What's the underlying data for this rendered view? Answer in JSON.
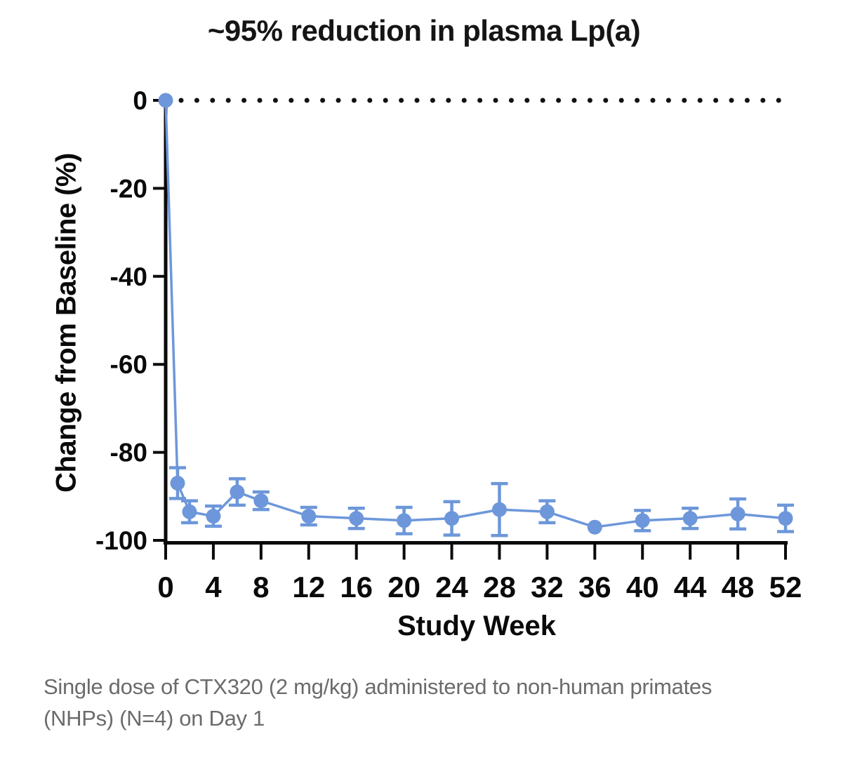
{
  "title": "~95% reduction in plasma Lp(a)",
  "caption": {
    "lines": [
      "Single dose of CTX320 (2 mg/kg) administered to non-human primates",
      "(NHPs) (N=4) on Day 1"
    ]
  },
  "colors": {
    "series_blue": "#6d97da",
    "axis_black": "#0a0a0a",
    "caption_gray": "#6b6b6b",
    "reference_dots": "#111111"
  },
  "chart_data": {
    "type": "line",
    "title": "~95% reduction in plasma Lp(a)",
    "xlabel": "Study Week",
    "ylabel": "Change from Baseline (%)",
    "xlim": [
      0,
      52
    ],
    "ylim": [
      -100,
      0
    ],
    "x_ticks": [
      0,
      4,
      8,
      12,
      16,
      20,
      24,
      28,
      32,
      36,
      40,
      44,
      48,
      52
    ],
    "y_ticks": [
      0,
      -20,
      -40,
      -60,
      -80,
      -100
    ],
    "grid": false,
    "legend": false,
    "reference_line": {
      "y": 0,
      "style": "dotted",
      "color": "#111111"
    },
    "x": [
      0,
      1,
      2,
      4,
      6,
      8,
      12,
      16,
      20,
      24,
      28,
      32,
      36,
      40,
      44,
      48,
      52
    ],
    "series": [
      {
        "name": "CTX320 (2 mg/kg) in NHPs (N=4)",
        "values": [
          0,
          -87,
          -93.5,
          -94.5,
          -89,
          -91,
          -94.5,
          -95,
          -95.5,
          -95,
          -93,
          -93.5,
          -97,
          -95.5,
          -95,
          -94,
          -95
        ],
        "errors": [
          0,
          3.5,
          2.5,
          2.3,
          3,
          2,
          2,
          2.3,
          3,
          3.8,
          5.9,
          2.5,
          0,
          2.3,
          2.3,
          3.4,
          3
        ]
      }
    ]
  }
}
